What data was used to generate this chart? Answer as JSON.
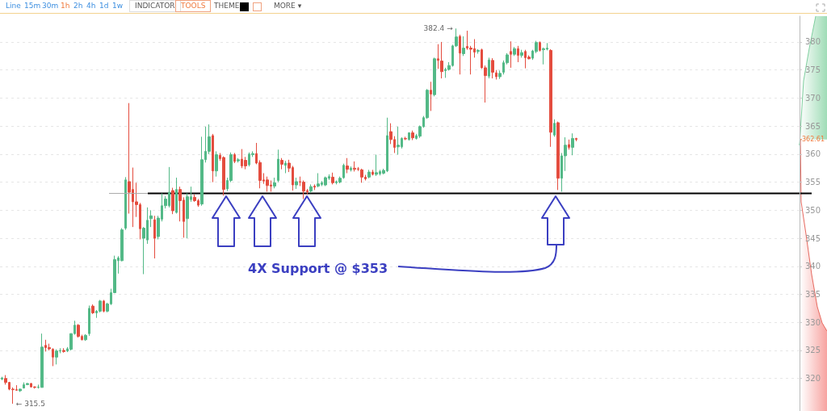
{
  "chart_data": {
    "type": "candlestick",
    "categories": [
      null,
      null,
      null,
      null,
      null,
      null,
      null,
      null,
      null,
      null,
      null,
      null,
      null,
      null,
      null,
      null,
      null,
      null,
      null,
      null,
      null,
      null,
      null,
      null,
      null,
      null,
      null,
      null,
      null,
      null,
      null,
      null,
      null,
      null,
      null,
      null,
      null,
      null,
      null,
      null,
      null,
      null,
      null,
      null,
      null,
      null,
      null,
      null,
      null,
      null,
      null,
      null,
      null,
      null,
      null,
      null,
      null,
      null,
      null,
      null,
      null,
      null,
      null,
      null,
      null,
      null,
      null,
      null,
      null,
      null,
      null,
      null,
      null,
      null,
      null,
      null,
      null,
      null,
      null,
      null,
      null,
      null,
      null,
      null,
      null,
      null,
      null,
      null,
      null,
      null,
      null,
      null,
      null,
      null,
      null,
      null,
      null,
      null,
      null,
      null,
      null,
      null,
      null,
      null,
      null,
      null,
      null,
      null,
      null,
      null,
      null,
      null,
      null,
      null,
      null,
      null,
      null,
      null,
      null,
      null,
      null,
      null,
      null,
      null,
      null,
      null,
      null,
      null,
      null,
      null,
      null,
      null,
      null,
      null,
      null,
      null,
      null,
      null,
      null,
      null,
      null,
      null,
      null,
      null,
      null,
      null,
      null,
      null,
      null,
      null,
      null,
      null,
      null,
      null,
      null,
      null,
      null,
      null,
      null,
      null,
      null,
      null,
      null,
      null,
      null,
      null,
      null,
      null,
      null,
      null,
      null,
      null,
      null,
      null,
      null,
      null,
      null,
      null,
      null,
      null,
      null,
      null,
      null,
      null,
      null,
      null,
      null,
      null,
      null,
      null,
      null,
      null,
      null,
      null,
      null,
      null,
      null,
      null,
      null,
      null,
      null,
      null,
      null,
      null,
      null,
      null,
      null,
      null,
      null,
      null,
      null,
      null,
      null,
      null,
      null,
      null,
      null,
      null,
      null,
      null
    ],
    "ohlc": [
      [
        319.9,
        320.3,
        319.7,
        320.1
      ],
      [
        320.0,
        320.6,
        318.9,
        319.3
      ],
      [
        319.3,
        319.4,
        317.9,
        318.1
      ],
      [
        318.1,
        318.4,
        315.5,
        318.0
      ],
      [
        318.0,
        318.8,
        317.8,
        317.9
      ],
      [
        317.8,
        318.2,
        317.6,
        318.1
      ],
      [
        318.3,
        319.3,
        318.2,
        318.9
      ],
      [
        318.9,
        319.2,
        318.8,
        319.1
      ],
      [
        319.1,
        319.2,
        318.4,
        318.5
      ],
      [
        318.5,
        318.6,
        318.2,
        318.4
      ],
      [
        318.4,
        318.9,
        318.2,
        318.5
      ],
      [
        318.4,
        328.0,
        318.4,
        325.6
      ],
      [
        325.9,
        326.9,
        324.8,
        325.5
      ],
      [
        325.5,
        326.2,
        325.0,
        325.3
      ],
      [
        325.2,
        325.4,
        322.2,
        323.8
      ],
      [
        323.8,
        325.2,
        322.5,
        324.9
      ],
      [
        324.9,
        325.4,
        324.5,
        325.0
      ],
      [
        325.0,
        325.4,
        324.6,
        324.8
      ],
      [
        324.9,
        325.6,
        324.7,
        325.3
      ],
      [
        325.2,
        328.0,
        325.0,
        328.0
      ],
      [
        328.0,
        330.3,
        327.8,
        329.5
      ],
      [
        329.5,
        329.7,
        327.3,
        327.5
      ],
      [
        327.5,
        327.8,
        326.8,
        326.9
      ],
      [
        326.9,
        327.9,
        326.7,
        327.7
      ],
      [
        328.0,
        333.0,
        327.6,
        332.5
      ],
      [
        332.9,
        333.2,
        331.5,
        331.7
      ],
      [
        331.7,
        332.2,
        330.8,
        332.0
      ],
      [
        332.0,
        334.0,
        331.8,
        333.8
      ],
      [
        333.8,
        334.0,
        331.8,
        332.0
      ],
      [
        332.0,
        333.5,
        331.8,
        333.3
      ],
      [
        333.3,
        336.0,
        333.1,
        335.3
      ],
      [
        335.3,
        341.9,
        335.2,
        341.2
      ],
      [
        341.0,
        341.8,
        338.7,
        341.5
      ],
      [
        341.0,
        346.8,
        340.9,
        346.5
      ],
      [
        346.8,
        355.9,
        346.5,
        355.4
      ],
      [
        355.1,
        369.1,
        349.4,
        353.2
      ],
      [
        353.7,
        357.6,
        347.0,
        351.5
      ],
      [
        351.5,
        354.9,
        348.8,
        351.0
      ],
      [
        351.0,
        351.3,
        344.8,
        346.7
      ],
      [
        345.0,
        347.0,
        338.6,
        346.8
      ],
      [
        344.7,
        350.5,
        344.0,
        348.2
      ],
      [
        348.5,
        350.0,
        347.0,
        349.0
      ],
      [
        348.3,
        349.0,
        341.4,
        345.0
      ],
      [
        345.3,
        349.0,
        344.8,
        348.6
      ],
      [
        348.4,
        353.0,
        348.0,
        350.8
      ],
      [
        350.8,
        352.5,
        350.3,
        352.0
      ],
      [
        350.8,
        357.7,
        350.5,
        353.2
      ],
      [
        353.5,
        354.0,
        349.3,
        349.9
      ],
      [
        349.6,
        355.8,
        349.4,
        353.7
      ],
      [
        353.7,
        354.2,
        348.0,
        351.7
      ],
      [
        351.8,
        352.3,
        345.1,
        348.0
      ],
      [
        348.5,
        353.0,
        345.0,
        352.4
      ],
      [
        351.9,
        354.2,
        351.5,
        352.4
      ],
      [
        352.3,
        352.8,
        351.5,
        351.7
      ],
      [
        351.7,
        352.0,
        350.6,
        350.9
      ],
      [
        351.1,
        363.1,
        350.8,
        359.0
      ],
      [
        359.0,
        364.9,
        358.5,
        360.5
      ],
      [
        360.5,
        365.3,
        360.0,
        363.1
      ],
      [
        363.3,
        363.6,
        355.0,
        357.0
      ],
      [
        357.0,
        360.5,
        356.0,
        359.9
      ],
      [
        359.8,
        360.2,
        358.8,
        359.2
      ],
      [
        359.4,
        359.6,
        352.6,
        353.7
      ],
      [
        353.8,
        355.8,
        353.4,
        355.3
      ],
      [
        355.3,
        360.3,
        355.0,
        359.9
      ],
      [
        359.9,
        360.2,
        358.4,
        358.7
      ],
      [
        358.8,
        359.3,
        358.5,
        359.0
      ],
      [
        359.1,
        360.9,
        357.5,
        357.9
      ],
      [
        358.9,
        359.5,
        357.3,
        357.9
      ],
      [
        358.1,
        360.3,
        357.8,
        360.0
      ],
      [
        359.9,
        360.5,
        359.5,
        360.1
      ],
      [
        360.1,
        362.0,
        358.2,
        358.4
      ],
      [
        358.5,
        358.9,
        353.9,
        355.3
      ],
      [
        355.4,
        356.6,
        354.7,
        355.2
      ],
      [
        355.4,
        356.0,
        353.3,
        354.4
      ],
      [
        354.5,
        355.3,
        353.3,
        354.3
      ],
      [
        354.3,
        355.8,
        353.9,
        354.9
      ],
      [
        355.3,
        360.8,
        355.0,
        359.1
      ],
      [
        358.9,
        359.3,
        357.3,
        358.2
      ],
      [
        358.0,
        358.8,
        356.6,
        358.4
      ],
      [
        358.4,
        359.0,
        356.8,
        357.5
      ],
      [
        357.6,
        357.9,
        353.5,
        354.5
      ],
      [
        354.5,
        355.8,
        353.8,
        355.1
      ],
      [
        355.1,
        356.0,
        354.3,
        355.0
      ],
      [
        355.0,
        355.3,
        352.0,
        353.4
      ],
      [
        353.5,
        353.8,
        352.8,
        353.3
      ],
      [
        353.4,
        354.6,
        353.1,
        354.2
      ],
      [
        354.3,
        354.6,
        353.6,
        354.1
      ],
      [
        354.3,
        356.6,
        354.1,
        354.7
      ],
      [
        354.6,
        355.2,
        354.3,
        354.9
      ],
      [
        354.5,
        356.0,
        354.3,
        355.8
      ],
      [
        355.7,
        356.4,
        355.4,
        356.0
      ],
      [
        355.9,
        356.7,
        354.6,
        354.9
      ],
      [
        354.9,
        355.3,
        354.6,
        355.1
      ],
      [
        355.0,
        356.0,
        354.8,
        355.7
      ],
      [
        355.8,
        358.3,
        355.6,
        358.0
      ],
      [
        357.9,
        359.3,
        356.6,
        357.3
      ],
      [
        357.2,
        357.8,
        356.9,
        357.5
      ],
      [
        357.5,
        358.7,
        356.9,
        357.3
      ],
      [
        357.4,
        357.7,
        357.0,
        357.3
      ],
      [
        357.2,
        357.4,
        354.9,
        355.9
      ],
      [
        355.9,
        356.3,
        355.3,
        355.6
      ],
      [
        355.9,
        357.2,
        355.7,
        356.8
      ],
      [
        356.8,
        357.2,
        356.2,
        356.4
      ],
      [
        356.4,
        359.9,
        356.1,
        356.7
      ],
      [
        356.5,
        357.2,
        356.2,
        356.9
      ],
      [
        356.6,
        357.4,
        356.4,
        357.1
      ],
      [
        357.0,
        366.5,
        356.8,
        363.3
      ],
      [
        364.0,
        365.5,
        361.8,
        362.6
      ],
      [
        362.6,
        363.2,
        360.2,
        361.2
      ],
      [
        361.3,
        364.9,
        359.9,
        361.6
      ],
      [
        361.3,
        363.0,
        361.0,
        362.8
      ],
      [
        362.8,
        363.1,
        362.5,
        362.7
      ],
      [
        362.6,
        363.9,
        362.4,
        363.8
      ],
      [
        363.8,
        364.2,
        362.5,
        362.9
      ],
      [
        362.8,
        363.6,
        362.6,
        363.3
      ],
      [
        363.2,
        365.1,
        362.9,
        364.9
      ],
      [
        364.9,
        366.8,
        364.7,
        366.5
      ],
      [
        366.5,
        371.6,
        366.3,
        371.4
      ],
      [
        371.4,
        372.9,
        367.7,
        370.7
      ],
      [
        370.6,
        377.2,
        370.3,
        377.0
      ],
      [
        377.0,
        379.6,
        375.2,
        376.7
      ],
      [
        376.6,
        380.0,
        373.5,
        374.7
      ],
      [
        374.9,
        375.4,
        373.6,
        375.1
      ],
      [
        375.1,
        376.4,
        374.9,
        375.8
      ],
      [
        375.8,
        379.5,
        375.6,
        379.3
      ],
      [
        379.3,
        382.4,
        379.1,
        380.9
      ],
      [
        381.0,
        381.3,
        374.2,
        378.0
      ],
      [
        377.9,
        381.0,
        377.5,
        378.9
      ],
      [
        379.2,
        382.0,
        378.6,
        378.9
      ],
      [
        378.9,
        379.3,
        374.2,
        378.7
      ],
      [
        378.8,
        380.5,
        377.2,
        378.2
      ],
      [
        378.3,
        378.7,
        377.9,
        378.5
      ],
      [
        378.6,
        378.8,
        375.2,
        375.4
      ],
      [
        375.4,
        375.8,
        369.2,
        374.0
      ],
      [
        373.9,
        377.2,
        373.5,
        376.8
      ],
      [
        376.7,
        377.1,
        373.5,
        374.6
      ],
      [
        374.5,
        375.0,
        373.3,
        373.8
      ],
      [
        373.8,
        374.9,
        373.4,
        374.4
      ],
      [
        374.6,
        376.7,
        374.2,
        376.3
      ],
      [
        376.3,
        378.0,
        376.0,
        377.7
      ],
      [
        378.3,
        380.1,
        375.4,
        377.8
      ],
      [
        377.8,
        379.1,
        377.5,
        378.8
      ],
      [
        378.8,
        379.3,
        376.4,
        377.6
      ],
      [
        377.6,
        378.6,
        377.2,
        378.1
      ],
      [
        378.3,
        378.6,
        375.3,
        377.2
      ],
      [
        377.3,
        377.6,
        376.9,
        377.0
      ],
      [
        377.1,
        378.6,
        376.8,
        378.4
      ],
      [
        378.3,
        380.2,
        378.0,
        379.9
      ],
      [
        379.9,
        380.1,
        378.3,
        378.5
      ],
      [
        378.6,
        379.0,
        376.0,
        378.8
      ],
      [
        378.7,
        379.8,
        378.5,
        378.9
      ],
      [
        378.5,
        378.7,
        361.3,
        363.9
      ],
      [
        363.4,
        366.2,
        363.1,
        365.5
      ],
      [
        365.6,
        365.8,
        353.6,
        355.7
      ],
      [
        355.7,
        360.2,
        353.3,
        359.7
      ],
      [
        359.7,
        363.0,
        357.0,
        361.6
      ],
      [
        361.7,
        362.6,
        360.8,
        361.2
      ],
      [
        361.2,
        363.7,
        359.8,
        362.8
      ],
      [
        362.8,
        362.9,
        362.3,
        362.61
      ],
      null,
      null,
      null,
      null,
      null,
      null,
      null,
      null,
      null,
      null,
      null,
      null,
      null,
      null,
      null,
      null,
      null,
      null,
      null,
      null,
      null,
      null,
      null,
      null,
      null,
      null,
      null,
      null,
      null,
      null,
      null,
      null,
      null,
      null,
      null,
      null,
      null,
      null,
      null,
      null,
      null,
      null,
      null,
      null,
      null,
      null,
      null,
      null,
      null,
      null,
      null,
      null,
      null,
      null,
      null,
      null,
      null,
      null,
      null,
      null,
      null
    ],
    "ylim": [
      314.2,
      384.6
    ],
    "yticks": [
      320,
      325,
      330,
      335,
      340,
      345,
      350,
      355,
      360,
      365,
      370,
      375,
      380
    ],
    "grid": "y",
    "tick_labels": "y",
    "ref_lines": [
      {
        "axis": "y",
        "value": 353,
        "color": "#000000"
      }
    ],
    "annotations": [
      "4X Support @ $353",
      "382.4 →",
      "← 315.5",
      "362.61",
      "Line",
      "15m",
      "30m",
      "1h",
      "2h",
      "4h",
      "1d",
      "1w",
      "INDICATOR",
      "TOOLS",
      "THEME",
      "MORE ▾"
    ]
  }
}
